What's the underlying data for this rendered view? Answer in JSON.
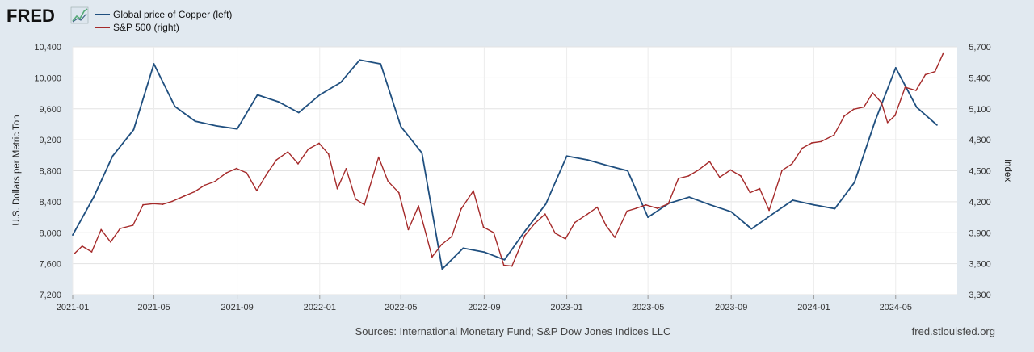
{
  "header": {
    "logo_text": "FRED",
    "logo_icon": "line-chart-icon"
  },
  "legend": [
    {
      "label": "Global price of Copper (left)",
      "color": "#1f4f7f"
    },
    {
      "label": "S&P 500 (right)",
      "color": "#a52a2a"
    }
  ],
  "footer": {
    "sources": "Sources: International Monetary Fund; S&P Dow Jones Indices LLC",
    "site": "fred.stlouisfed.org"
  },
  "chart_data": {
    "type": "line",
    "title": "",
    "xlabel": "",
    "ylabel_left": "U.S. Dollars per Metric Ton",
    "ylabel_right": "Index",
    "x_range": [
      "2021-01-01",
      "2024-07-31"
    ],
    "x_ticks": [
      "2021-01",
      "2021-05",
      "2021-09",
      "2022-01",
      "2022-05",
      "2022-09",
      "2023-01",
      "2023-05",
      "2023-09",
      "2024-01",
      "2024-05"
    ],
    "ylim_left": [
      7200,
      10400
    ],
    "ylim_right": [
      3300,
      5700
    ],
    "yticks_left": [
      "7,200",
      "7,600",
      "8,000",
      "8,400",
      "8,800",
      "9,200",
      "9,600",
      "10,000",
      "10,400"
    ],
    "yticks_right": [
      "3,300",
      "3,600",
      "3,900",
      "4,200",
      "4,500",
      "4,800",
      "5,100",
      "5,400",
      "5,700"
    ],
    "grid": true,
    "legend_position": "top-left",
    "series": [
      {
        "name": "Global price of Copper (left)",
        "axis": "left",
        "color": "#1f4f7f",
        "dates": [
          "2021-01",
          "2021-02",
          "2021-03",
          "2021-04",
          "2021-05",
          "2021-06",
          "2021-07",
          "2021-08",
          "2021-09",
          "2021-10",
          "2021-11",
          "2021-12",
          "2022-01",
          "2022-02",
          "2022-03",
          "2022-04",
          "2022-05",
          "2022-06",
          "2022-07",
          "2022-08",
          "2022-09",
          "2022-10",
          "2022-11",
          "2022-12",
          "2023-01",
          "2023-02",
          "2023-03",
          "2023-04",
          "2023-05",
          "2023-06",
          "2023-07",
          "2023-08",
          "2023-09",
          "2023-10",
          "2023-11",
          "2023-12",
          "2024-01",
          "2024-02",
          "2024-03",
          "2024-04",
          "2024-05",
          "2024-06",
          "2024-07"
        ],
        "values": [
          7970,
          8460,
          8990,
          9330,
          10180,
          9630,
          9440,
          9380,
          9340,
          9780,
          9690,
          9550,
          9780,
          9940,
          10230,
          10180,
          9370,
          9030,
          7530,
          7800,
          7750,
          7650,
          8030,
          8370,
          8990,
          8940,
          8870,
          8800,
          8200,
          8380,
          8460,
          8360,
          8270,
          8050,
          8240,
          8420,
          8360,
          8310,
          8650,
          9450,
          10130,
          9620,
          9390
        ]
      },
      {
        "name": "S&P 500 (right)",
        "axis": "right",
        "color": "#a52a2a",
        "dates": [
          "2021-01-04",
          "2021-01-15",
          "2021-01-29",
          "2021-02-12",
          "2021-02-26",
          "2021-03-12",
          "2021-03-31",
          "2021-04-15",
          "2021-04-30",
          "2021-05-14",
          "2021-05-28",
          "2021-06-15",
          "2021-06-30",
          "2021-07-15",
          "2021-07-30",
          "2021-08-16",
          "2021-08-31",
          "2021-09-15",
          "2021-09-30",
          "2021-10-15",
          "2021-10-29",
          "2021-11-15",
          "2021-11-30",
          "2021-12-15",
          "2021-12-31",
          "2022-01-14",
          "2022-01-27",
          "2022-02-09",
          "2022-02-23",
          "2022-03-08",
          "2022-03-29",
          "2022-04-12",
          "2022-04-28",
          "2022-05-12",
          "2022-05-27",
          "2022-06-16",
          "2022-06-30",
          "2022-07-15",
          "2022-07-29",
          "2022-08-16",
          "2022-08-31",
          "2022-09-15",
          "2022-09-30",
          "2022-10-12",
          "2022-10-31",
          "2022-11-15",
          "2022-11-30",
          "2022-12-15",
          "2022-12-30",
          "2023-01-13",
          "2023-01-31",
          "2023-02-15",
          "2023-02-28",
          "2023-03-13",
          "2023-03-31",
          "2023-04-14",
          "2023-04-28",
          "2023-05-15",
          "2023-05-31",
          "2023-06-15",
          "2023-06-30",
          "2023-07-14",
          "2023-07-31",
          "2023-08-15",
          "2023-08-31",
          "2023-09-15",
          "2023-09-29",
          "2023-10-13",
          "2023-10-27",
          "2023-11-15",
          "2023-11-30",
          "2023-12-15",
          "2023-12-29",
          "2024-01-12",
          "2024-01-31",
          "2024-02-15",
          "2024-02-29",
          "2024-03-15",
          "2024-03-28",
          "2024-04-10",
          "2024-04-19",
          "2024-04-30",
          "2024-05-15",
          "2024-05-31",
          "2024-06-14",
          "2024-06-28",
          "2024-07-10"
        ],
        "values": [
          3700,
          3770,
          3714,
          3930,
          3810,
          3940,
          3972,
          4170,
          4181,
          4175,
          4204,
          4255,
          4297,
          4360,
          4395,
          4480,
          4523,
          4480,
          4307,
          4471,
          4605,
          4683,
          4567,
          4709,
          4766,
          4662,
          4326,
          4520,
          4225,
          4170,
          4631,
          4397,
          4287,
          3930,
          4158,
          3666,
          3785,
          3863,
          4130,
          4305,
          3955,
          3901,
          3585,
          3577,
          3872,
          3991,
          4080,
          3895,
          3840,
          3999,
          4077,
          4147,
          3970,
          3855,
          4109,
          4137,
          4169,
          4136,
          4180,
          4426,
          4450,
          4505,
          4589,
          4437,
          4508,
          4450,
          4288,
          4327,
          4117,
          4502,
          4568,
          4719,
          4770,
          4783,
          4846,
          5030,
          5096,
          5117,
          5254,
          5160,
          4967,
          5035,
          5308,
          5278,
          5431,
          5460,
          5633
        ]
      }
    ]
  }
}
